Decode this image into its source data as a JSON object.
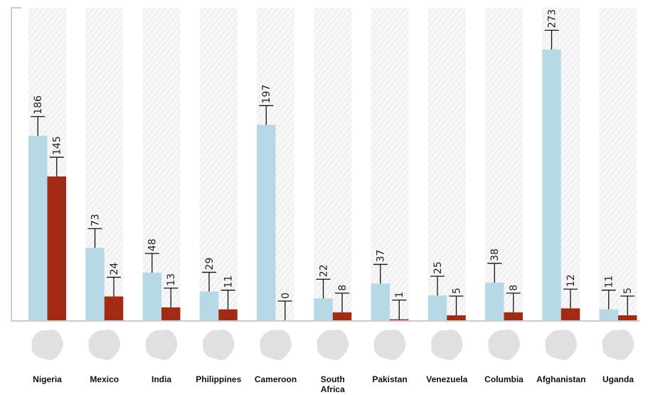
{
  "chart_data": {
    "type": "bar",
    "title": "",
    "xlabel": "",
    "ylabel": "",
    "ylim": [
      0,
      315
    ],
    "grid": false,
    "legend": "none",
    "categories": [
      "Nigeria",
      "Mexico",
      "India",
      "Philippines",
      "Cameroon",
      "South Africa",
      "Pakistan",
      "Venezuela",
      "Columbia",
      "Afghanistan",
      "Uganda"
    ],
    "category_lines": [
      [
        "Nigeria"
      ],
      [
        "Mexico"
      ],
      [
        "India"
      ],
      [
        "Philippines"
      ],
      [
        "Cameroon"
      ],
      [
        "South",
        "Africa"
      ],
      [
        "Pakistan"
      ],
      [
        "Venezuela"
      ],
      [
        "Columbia"
      ],
      [
        "Afghanistan"
      ],
      [
        "Uganda"
      ]
    ],
    "series": [
      {
        "color": "#b7d8e5",
        "values": [
          186,
          73,
          48,
          29,
          197,
          22,
          37,
          25,
          38,
          273,
          11
        ]
      },
      {
        "color": "#a32b16",
        "values": [
          145,
          24,
          13,
          11,
          0,
          8,
          1,
          5,
          8,
          12,
          5
        ]
      }
    ],
    "value_labels": [
      [
        "186",
        "73",
        "48",
        "29",
        "197",
        "22",
        "37",
        "25",
        "38",
        "273",
        "11"
      ],
      [
        "145",
        "24",
        "13",
        "11",
        "0",
        "8",
        "1",
        "5",
        "8",
        "12",
        "5"
      ]
    ],
    "error_bars": "upper whiskers on every bar",
    "map_icon_color": "#e0e0e0",
    "panel_hatch_color": "#dcdcdc"
  }
}
